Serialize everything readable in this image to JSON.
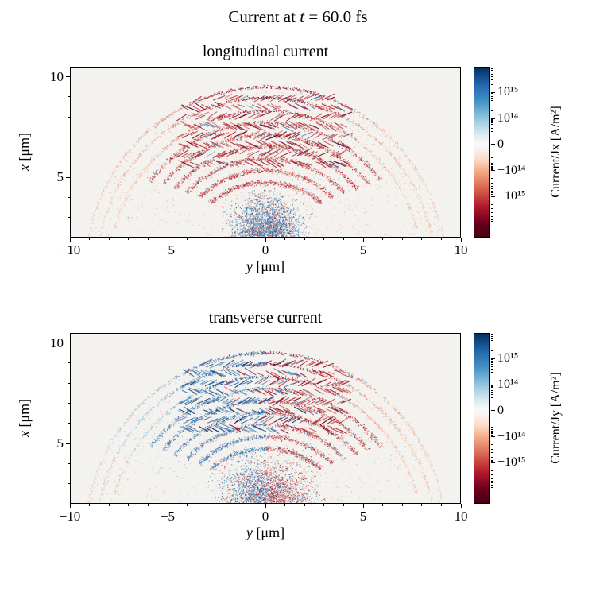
{
  "suptitle": {
    "pre": "Current at ",
    "var": "t",
    "post": " = 60.0 fs",
    "full": "Current at t = 60.0 fs"
  },
  "style": {
    "plot_bg": "#f4f2ef",
    "positive_color": "#053061",
    "negative_color": "#67001f",
    "cmap": "RdBu",
    "cmap_stops": [
      {
        "c": "#053061",
        "p": 0
      },
      {
        "c": "#2166ac",
        "p": 10
      },
      {
        "c": "#4393c3",
        "p": 20
      },
      {
        "c": "#92c5de",
        "p": 30
      },
      {
        "c": "#d1e5f0",
        "p": 38
      },
      {
        "c": "#f7f7f7",
        "p": 44
      },
      {
        "c": "#f7f7f7",
        "p": 47
      },
      {
        "c": "#fddbc7",
        "p": 54
      },
      {
        "c": "#f4a582",
        "p": 62
      },
      {
        "c": "#d6604d",
        "p": 72
      },
      {
        "c": "#b2182b",
        "p": 82
      },
      {
        "c": "#67001f",
        "p": 92
      },
      {
        "c": "#4a0012",
        "p": 100
      }
    ]
  },
  "chart_data": [
    {
      "type": "heatmap",
      "title": "longitudinal current",
      "xlabel": "y [μm]",
      "xlabel_var": "y",
      "xlabel_unit": " [μm]",
      "ylabel": "x [μm]",
      "ylabel_var": "x",
      "ylabel_unit": " [μm]",
      "xlim": [
        -10,
        10
      ],
      "ylim": [
        2,
        10.5
      ],
      "xticks": {
        "values": [
          -10,
          -5,
          0,
          5,
          10
        ],
        "labels": [
          "−10",
          "−5",
          "0",
          "5",
          "10"
        ]
      },
      "yticks": {
        "values": [
          5,
          10
        ],
        "labels": [
          "5",
          "10"
        ]
      },
      "grid": false,
      "colorbar": {
        "label": "Current/Jx [A/m²]",
        "scale": "symlog",
        "ticks": [
          "10¹⁵",
          "10¹⁴",
          "0",
          "−10¹⁴",
          "−10¹⁵"
        ],
        "tick_pos": [
          0.15,
          0.303,
          0.455,
          0.607,
          0.76
        ]
      },
      "pattern": {
        "mode": "radial",
        "seed": 7,
        "description": "Expanding dome (apex x≈9.6 μm, wings reaching y≈±9 μm) of arc-shaped filaments carrying predominantly negative (red) longitudinal current Jx with crosshatched filament texture; weak positive (blue) return-current speckle near the base center (|y|<3 μm, x<6 μm); faint red wing arcs on both sides."
      }
    },
    {
      "type": "heatmap",
      "title": "transverse current",
      "xlabel": "y [μm]",
      "xlabel_var": "y",
      "xlabel_unit": " [μm]",
      "ylabel": "x [μm]",
      "ylabel_var": "x",
      "ylabel_unit": " [μm]",
      "xlim": [
        -10,
        10
      ],
      "ylim": [
        2,
        10.5
      ],
      "xticks": {
        "values": [
          -10,
          -5,
          0,
          5,
          10
        ],
        "labels": [
          "−10",
          "−5",
          "0",
          "5",
          "10"
        ]
      },
      "yticks": {
        "values": [
          5,
          10
        ],
        "labels": [
          "5",
          "10"
        ]
      },
      "grid": false,
      "colorbar": {
        "label": "Current/Jy [A/m²]",
        "scale": "symlog",
        "ticks": [
          "10¹⁵",
          "10¹⁴",
          "0",
          "−10¹⁴",
          "−10¹⁵"
        ],
        "tick_pos": [
          0.15,
          0.303,
          0.455,
          0.607,
          0.76
        ]
      },
      "pattern": {
        "mode": "antisym",
        "seed": 13,
        "description": "Same dome geometry with antisymmetric transverse current Jy: positive (blue) filaments on the left half (y<0), negative (red) filaments on the right half (y>0), mixed speckle at the base center, faint reddish outer wing arcs on both sides."
      }
    }
  ]
}
